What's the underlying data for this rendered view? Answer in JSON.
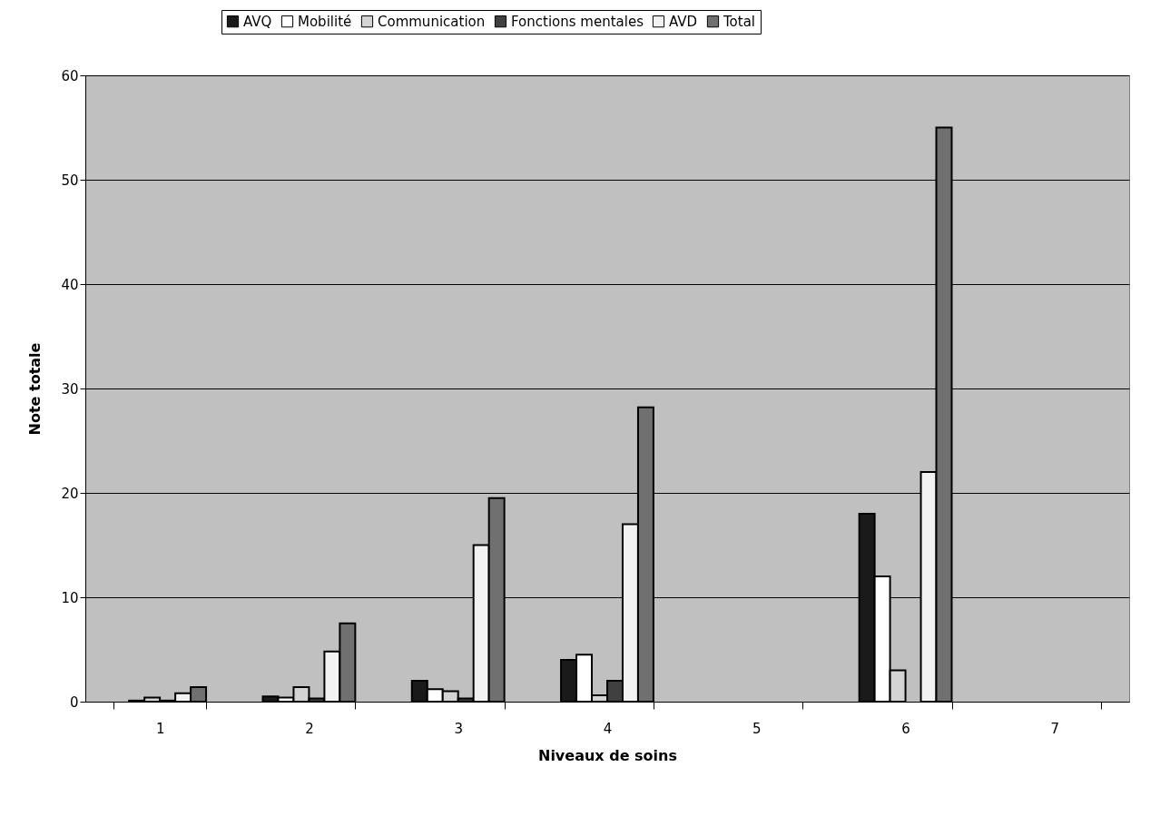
{
  "chart_data": {
    "type": "bar",
    "xlabel": "Niveaux de soins",
    "ylabel": "Note totale",
    "categories": [
      "1",
      "2",
      "3",
      "4",
      "5",
      "6",
      "7"
    ],
    "series": [
      {
        "name": "AVQ",
        "color": "#1a1a1a",
        "values": [
          0,
          0.5,
          2,
          4,
          0,
          18,
          0
        ]
      },
      {
        "name": "Mobilité",
        "color": "#ffffff",
        "values": [
          0.1,
          0.4,
          1.2,
          4.5,
          0,
          12,
          0
        ]
      },
      {
        "name": "Communication",
        "color": "#d4d4d4",
        "values": [
          0.4,
          1.4,
          1,
          0.6,
          0,
          3,
          0
        ]
      },
      {
        "name": "Fonctions mentales",
        "color": "#404040",
        "values": [
          0.1,
          0.3,
          0.3,
          2,
          0,
          0,
          0
        ]
      },
      {
        "name": "AVD",
        "color": "#f2f2f2",
        "values": [
          0.8,
          4.8,
          15,
          17,
          0,
          22,
          0
        ]
      },
      {
        "name": "Total",
        "color": "#707070",
        "values": [
          1.4,
          7.5,
          19.5,
          28.2,
          0,
          55,
          0
        ]
      }
    ],
    "ylim": [
      0,
      60
    ],
    "yticks": [
      0,
      10,
      20,
      30,
      40,
      50,
      60
    ],
    "grid": "y",
    "legend": "top"
  }
}
